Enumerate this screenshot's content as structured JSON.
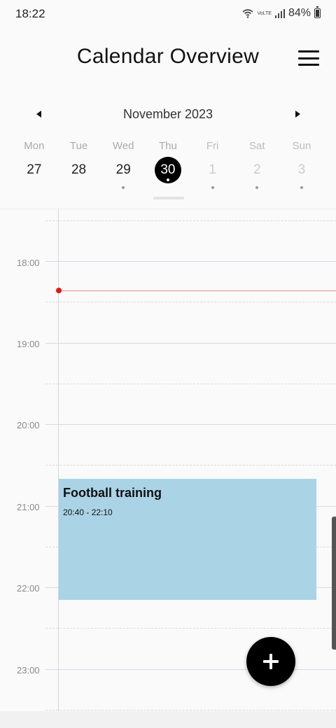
{
  "status_bar": {
    "time": "18:22",
    "network": "VoLTE",
    "battery": "84%"
  },
  "header": {
    "title": "Calendar Overview",
    "menu_icon": "menu-icon"
  },
  "month_nav": {
    "label": "November 2023",
    "prev_icon": "chevron-left-icon",
    "next_icon": "chevron-right-icon"
  },
  "week": {
    "days": [
      {
        "name": "Mon",
        "date": "27",
        "selected": false,
        "faded": false,
        "has_event": false
      },
      {
        "name": "Tue",
        "date": "28",
        "selected": false,
        "faded": false,
        "has_event": false
      },
      {
        "name": "Wed",
        "date": "29",
        "selected": false,
        "faded": false,
        "has_event": true
      },
      {
        "name": "Thu",
        "date": "30",
        "selected": true,
        "faded": false,
        "has_event": true
      },
      {
        "name": "Fri",
        "date": "1",
        "selected": false,
        "faded": true,
        "has_event": true
      },
      {
        "name": "Sat",
        "date": "2",
        "selected": false,
        "faded": true,
        "has_event": true
      },
      {
        "name": "Sun",
        "date": "3",
        "selected": false,
        "faded": true,
        "has_event": true
      }
    ]
  },
  "timeline": {
    "hours": [
      "18:00",
      "19:00",
      "20:00",
      "21:00",
      "22:00",
      "23:00"
    ],
    "current_time": "18:22",
    "now_color": "#e01818"
  },
  "events": [
    {
      "title": "Football training",
      "time": "20:40 - 22:10",
      "color": "#aad4e6"
    }
  ],
  "fab": {
    "icon": "plus-icon"
  }
}
